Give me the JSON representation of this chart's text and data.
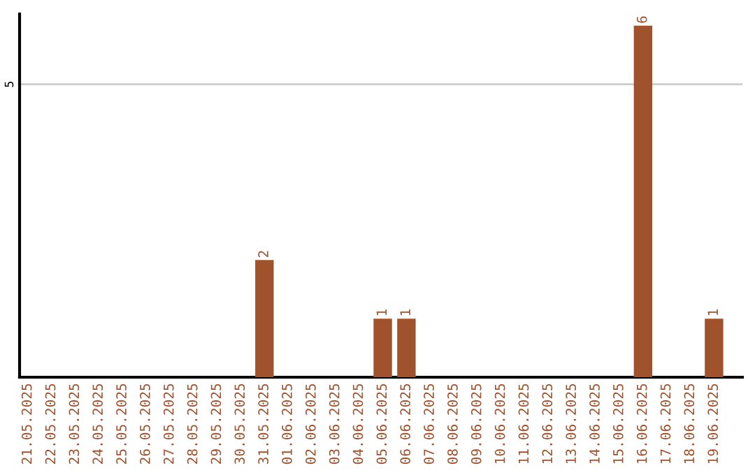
{
  "chart_data": {
    "type": "bar",
    "categories": [
      "21.05.2025",
      "22.05.2025",
      "23.05.2025",
      "24.05.2025",
      "25.05.2025",
      "26.05.2025",
      "27.05.2025",
      "28.05.2025",
      "29.05.2025",
      "30.05.2025",
      "31.05.2025",
      "01.06.2025",
      "02.06.2025",
      "03.06.2025",
      "04.06.2025",
      "05.06.2025",
      "06.06.2025",
      "07.06.2025",
      "08.06.2025",
      "09.06.2025",
      "10.06.2025",
      "11.06.2025",
      "12.06.2025",
      "13.06.2025",
      "14.06.2025",
      "15.06.2025",
      "16.06.2025",
      "17.06.2025",
      "18.06.2025",
      "19.06.2025"
    ],
    "values": [
      0,
      0,
      0,
      0,
      0,
      0,
      0,
      0,
      0,
      0,
      2,
      0,
      0,
      0,
      0,
      1,
      1,
      0,
      0,
      0,
      0,
      0,
      0,
      0,
      0,
      0,
      6,
      0,
      0,
      1
    ],
    "value_labels": [
      null,
      null,
      null,
      null,
      null,
      null,
      null,
      null,
      null,
      null,
      "2",
      null,
      null,
      null,
      null,
      "1",
      "1",
      null,
      null,
      null,
      null,
      null,
      null,
      null,
      null,
      null,
      "6",
      null,
      null,
      "1"
    ],
    "color": "#a0522d",
    "ylim": [
      0,
      6.2
    ],
    "yticks": [
      5
    ],
    "grid": "y"
  }
}
